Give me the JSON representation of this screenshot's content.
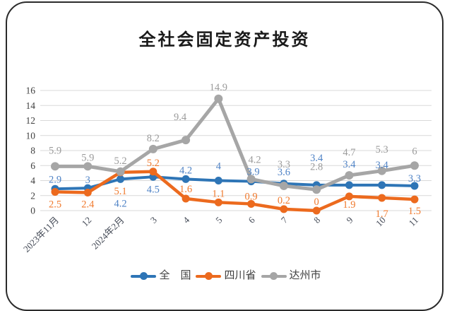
{
  "chart_data": {
    "type": "line",
    "title": "全社会固定资产投资",
    "categories": [
      "2023年11月",
      "12",
      "2024年2月",
      "3",
      "4",
      "5",
      "6",
      "7",
      "8",
      "9",
      "10",
      "11"
    ],
    "series": [
      {
        "name": "全　国",
        "color": "#2E75B6",
        "label_color": "#4F83C6",
        "values": [
          2.9,
          3,
          4.2,
          4.5,
          4.2,
          4,
          3.9,
          3.6,
          3.4,
          3.4,
          3.4,
          3.3
        ],
        "label_dy": [
          -14,
          -12,
          34,
          17,
          -13,
          -21,
          -14,
          -17,
          -39,
          -30,
          -29,
          -11
        ],
        "label_dx": [
          0,
          0,
          0,
          0,
          0,
          0,
          3,
          0,
          0,
          0,
          0,
          0
        ]
      },
      {
        "name": "四川省",
        "color": "#EC6A1E",
        "label_color": "#F07A2E",
        "values": [
          2.5,
          2.4,
          5.1,
          5.2,
          1.6,
          1.1,
          0.9,
          0.2,
          0,
          1.9,
          1.7,
          1.5
        ],
        "label_dy": [
          17,
          16,
          26,
          -13,
          -14,
          -13,
          -11,
          -13,
          -13,
          11,
          22,
          16
        ],
        "label_dx": [
          0,
          0,
          0,
          0,
          0,
          0,
          0,
          0,
          0,
          0,
          0,
          0
        ]
      },
      {
        "name": "达州市",
        "color": "#A6A6A6",
        "label_color": "#9B9B9B",
        "values": [
          5.9,
          5.9,
          5.2,
          8.2,
          9.4,
          14.9,
          4.2,
          3.3,
          2.8,
          4.7,
          5.3,
          6
        ],
        "label_dy": [
          -23,
          -13,
          -16,
          -16,
          -33,
          -17,
          -28,
          -31,
          -33,
          -33,
          -31,
          -21
        ],
        "label_dx": [
          0,
          0,
          0,
          0,
          -8,
          0,
          5,
          0,
          0,
          0,
          0,
          0
        ]
      }
    ],
    "ylim": [
      0,
      16
    ],
    "ytick_step": 2,
    "grid": true,
    "legend_position": "bottom",
    "axis_text_color": "#404040",
    "xtick_text_color": "#464c58",
    "grid_color": "#D9D9D9"
  }
}
